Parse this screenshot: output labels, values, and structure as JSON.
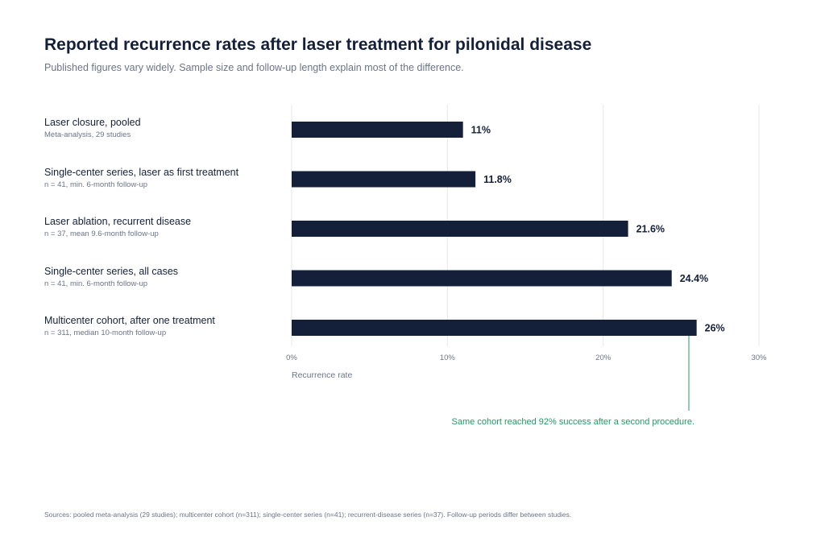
{
  "title": "Reported recurrence rates after laser treatment for pilonidal disease",
  "subtitle": "Published figures vary widely. Sample size and follow-up length explain most of the difference.",
  "colors": {
    "bar": "#14203a",
    "grid": "#e6e8ec",
    "annotation": "#1f9a64",
    "muted": "#6b7488"
  },
  "chart_data": {
    "type": "bar",
    "orientation": "horizontal",
    "categories": [
      "Laser closure, pooled",
      "Single-center series, laser as first treatment",
      "Laser ablation, recurrent disease",
      "Single-center series, all cases",
      "Multicenter cohort, after one treatment"
    ],
    "category_notes": [
      "Meta-analysis, 29 studies",
      "n = 41, min. 6-month follow-up",
      "n = 37, mean 9.6-month follow-up",
      "n = 41, min. 6-month follow-up",
      "n = 311, median 10-month follow-up"
    ],
    "values": [
      11,
      11.8,
      21.6,
      24.4,
      26
    ],
    "value_labels": [
      "11%",
      "11.8%",
      "21.6%",
      "24.4%",
      "26%"
    ],
    "xlabel": "Recurrence rate",
    "xlim": [
      0,
      30
    ],
    "xticks": [
      0,
      10,
      20,
      30
    ],
    "xtick_labels": [
      "0%",
      "10%",
      "20%",
      "30%"
    ],
    "grid": true,
    "annotation": {
      "text": "Same cohort reached 92% success after a second procedure.",
      "category_index": 4,
      "x": 25.5
    }
  },
  "footer": "Sources: pooled meta-analysis (29 studies); multicenter cohort (n=311); single-center series (n=41); recurrent-disease series (n=37). Follow-up periods differ between studies."
}
